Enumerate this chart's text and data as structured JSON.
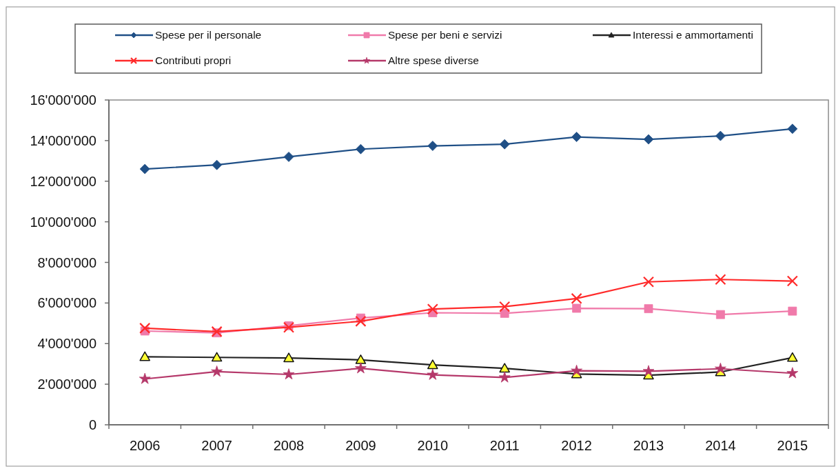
{
  "chart_data": {
    "type": "line",
    "categories": [
      "2006",
      "2007",
      "2008",
      "2009",
      "2010",
      "2011",
      "2012",
      "2013",
      "2014",
      "2015"
    ],
    "ylim": [
      0,
      16000000
    ],
    "yticks": [
      0,
      {
        "value": 2000000,
        "label": "2'000'000"
      },
      {
        "value": 4000000,
        "label": "4'000'000"
      },
      {
        "value": 6000000,
        "label": "6'000'000"
      },
      {
        "value": 8000000,
        "label": "8'000'000"
      },
      {
        "value": 10000000,
        "label": "10'000'000"
      },
      {
        "value": 12000000,
        "label": "12'000'000"
      },
      {
        "value": 14000000,
        "label": "14'000'000"
      },
      {
        "value": 16000000,
        "label": "16'000'000"
      }
    ],
    "legend": "top",
    "line_style": "solid",
    "series": [
      {
        "name": "Spese per il personale",
        "color": "#1f4f86",
        "marker": "diamond",
        "values": [
          12600000,
          12800000,
          13200000,
          13580000,
          13740000,
          13820000,
          14180000,
          14060000,
          14230000,
          14580000
        ]
      },
      {
        "name": "Spese per beni e servizi",
        "color": "#f07aaa",
        "marker": "square",
        "values": [
          4620000,
          4530000,
          4880000,
          5260000,
          5520000,
          5490000,
          5740000,
          5720000,
          5430000,
          5600000
        ]
      },
      {
        "name": "Interessi e ammortamenti",
        "color": "#222222",
        "marker": "triangle",
        "colors": [
          "#ffff33",
          "#ffff33",
          "#ffff33",
          "#ffff33",
          "#ffff33",
          "#ffff33",
          "#ffff33",
          "#ffff33",
          "#ffff33",
          "#ffff33"
        ],
        "values": [
          3350000,
          3320000,
          3290000,
          3200000,
          2950000,
          2780000,
          2500000,
          2440000,
          2600000,
          3310000
        ]
      },
      {
        "name": "Contributi propri",
        "color": "#ff2a2a",
        "marker": "cross",
        "values": [
          4760000,
          4590000,
          4800000,
          5100000,
          5700000,
          5820000,
          6220000,
          7040000,
          7160000,
          7080000
        ]
      },
      {
        "name": "Altre spese diverse",
        "color": "#b5386a",
        "marker": "star",
        "values": [
          2260000,
          2620000,
          2480000,
          2780000,
          2460000,
          2330000,
          2660000,
          2640000,
          2760000,
          2540000
        ]
      }
    ]
  }
}
